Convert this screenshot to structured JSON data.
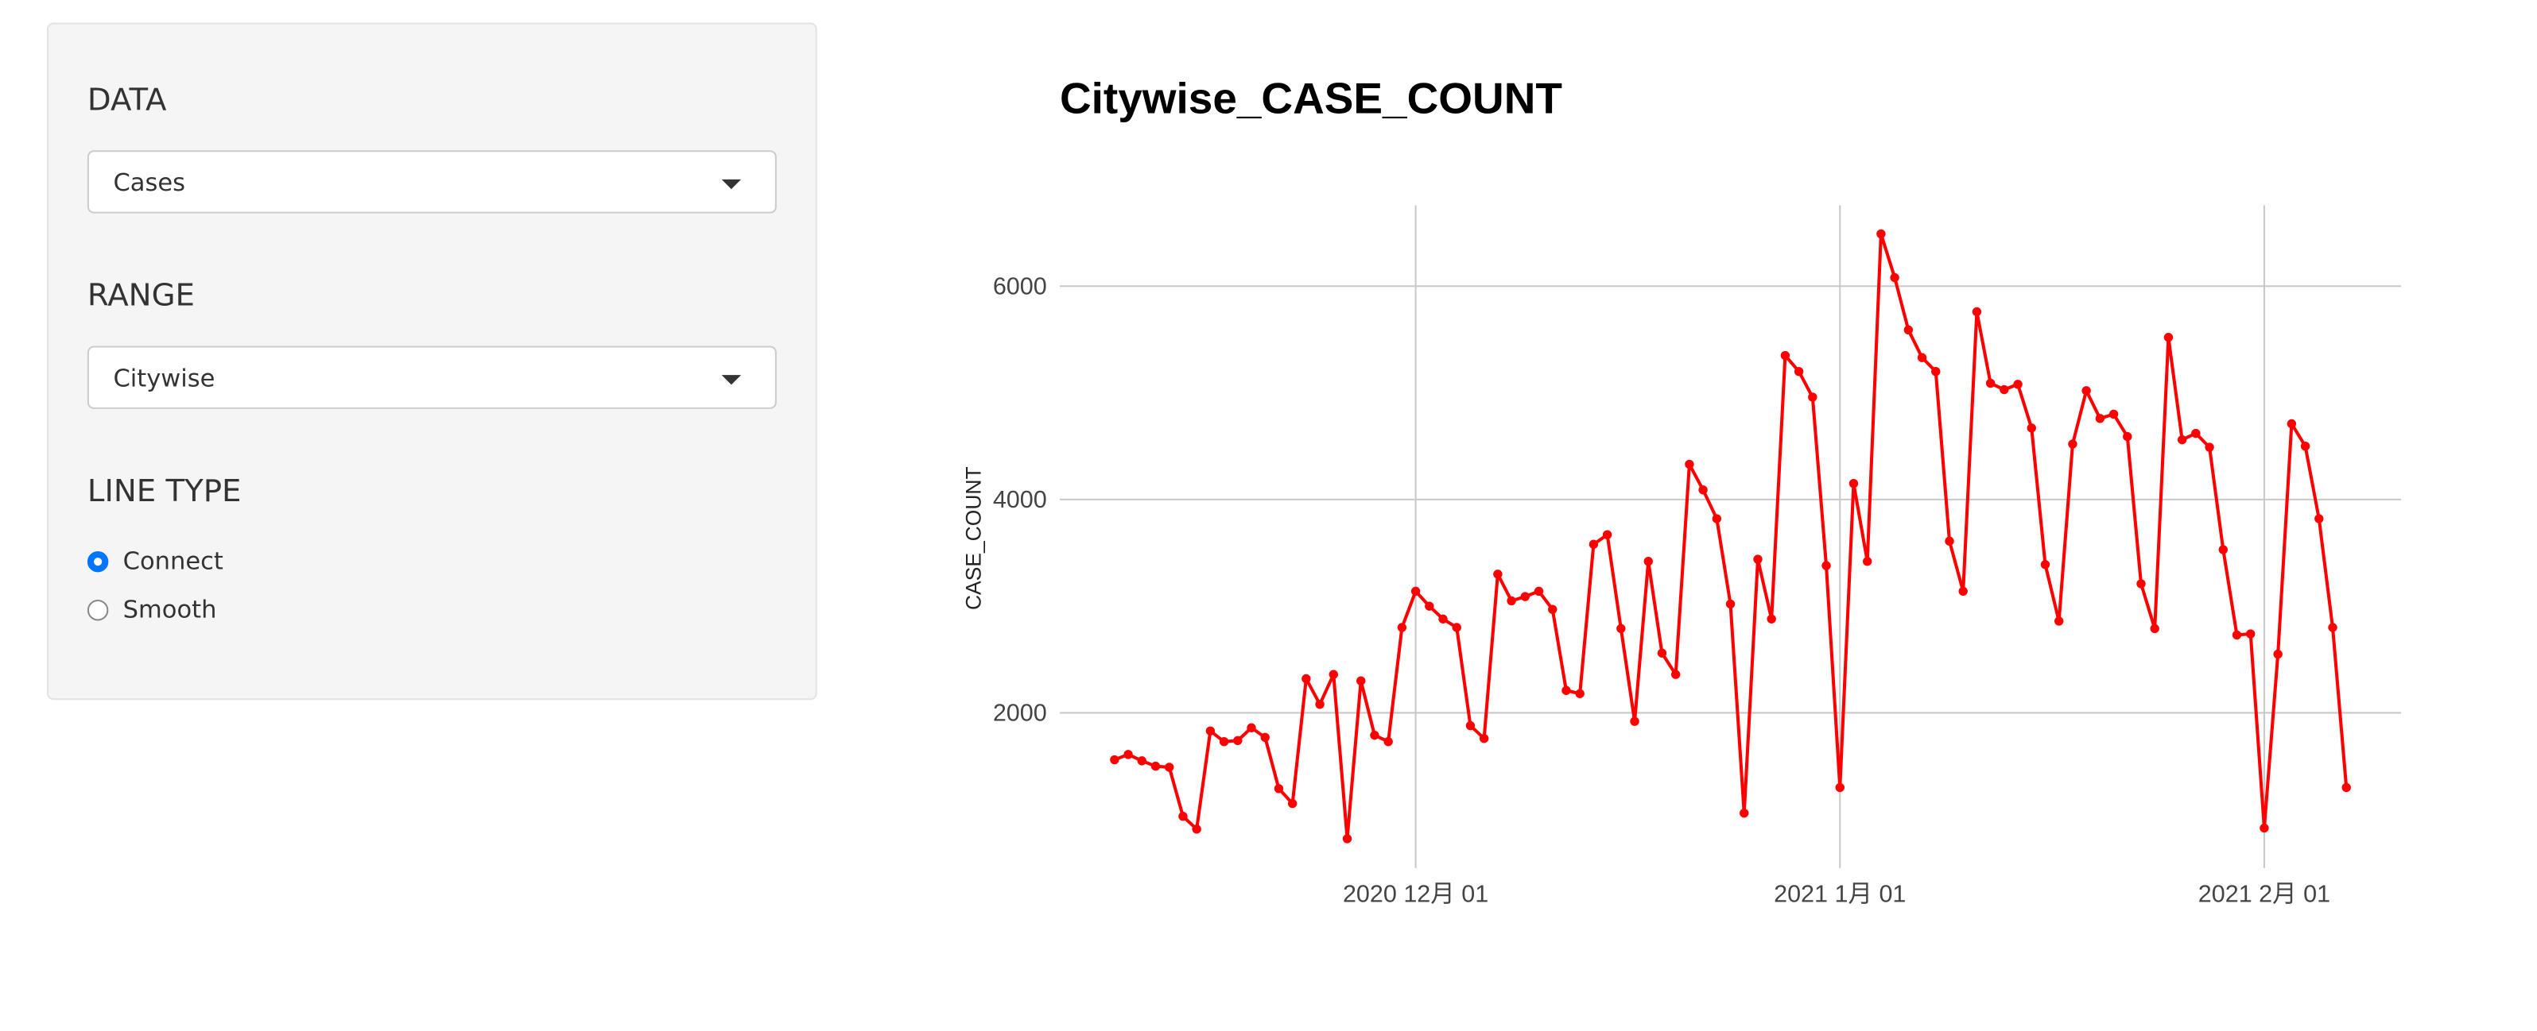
{
  "sidebar": {
    "data_label": "DATA",
    "data_value": "Cases",
    "range_label": "RANGE",
    "range_value": "Citywise",
    "line_type_label": "LINE TYPE",
    "options": [
      "Connect",
      "Smooth"
    ],
    "selected": 0
  },
  "chart_data": {
    "type": "line",
    "title": "Citywise_CASE_COUNT",
    "y_label": "CASE_COUNT",
    "x": [
      "2020-11-09",
      "2020-11-10",
      "2020-11-11",
      "2020-11-12",
      "2020-11-13",
      "2020-11-14",
      "2020-11-15",
      "2020-11-16",
      "2020-11-17",
      "2020-11-18",
      "2020-11-19",
      "2020-11-20",
      "2020-11-21",
      "2020-11-22",
      "2020-11-23",
      "2020-11-24",
      "2020-11-25",
      "2020-11-26",
      "2020-11-27",
      "2020-11-28",
      "2020-11-29",
      "2020-11-30",
      "2020-12-01",
      "2020-12-02",
      "2020-12-03",
      "2020-12-04",
      "2020-12-05",
      "2020-12-06",
      "2020-12-07",
      "2020-12-08",
      "2020-12-09",
      "2020-12-10",
      "2020-12-11",
      "2020-12-12",
      "2020-12-13",
      "2020-12-14",
      "2020-12-15",
      "2020-12-16",
      "2020-12-17",
      "2020-12-18",
      "2020-12-19",
      "2020-12-20",
      "2020-12-21",
      "2020-12-22",
      "2020-12-23",
      "2020-12-24",
      "2020-12-25",
      "2020-12-26",
      "2020-12-27",
      "2020-12-28",
      "2020-12-29",
      "2020-12-30",
      "2020-12-31",
      "2021-01-01",
      "2021-01-02",
      "2021-01-03",
      "2021-01-04",
      "2021-01-05",
      "2021-01-06",
      "2021-01-07",
      "2021-01-08",
      "2021-01-09",
      "2021-01-10",
      "2021-01-11",
      "2021-01-12",
      "2021-01-13",
      "2021-01-14",
      "2021-01-15",
      "2021-01-16",
      "2021-01-17",
      "2021-01-18",
      "2021-01-19",
      "2021-01-20",
      "2021-01-21",
      "2021-01-22",
      "2021-01-23",
      "2021-01-24",
      "2021-01-25",
      "2021-01-26",
      "2021-01-27",
      "2021-01-28",
      "2021-01-29",
      "2021-01-30",
      "2021-01-31",
      "2021-02-01",
      "2021-02-02",
      "2021-02-03",
      "2021-02-04",
      "2021-02-05",
      "2021-02-06",
      "2021-02-07"
    ],
    "series": [
      {
        "color": "#ff0000",
        "values": [
          1560,
          1610,
          1550,
          1500,
          1490,
          1030,
          910,
          1830,
          1730,
          1740,
          1860,
          1770,
          1290,
          1150,
          2320,
          2080,
          2360,
          820,
          2300,
          1790,
          1730,
          2800,
          3140,
          3000,
          2880,
          2800,
          1880,
          1760,
          3300,
          3050,
          3090,
          3140,
          2970,
          2210,
          2180,
          3580,
          3670,
          2790,
          1920,
          3420,
          2560,
          2360,
          4330,
          4090,
          3820,
          3020,
          1060,
          3440,
          2880,
          5350,
          5200,
          4960,
          3380,
          1300,
          4150,
          3420,
          6490,
          6080,
          5590,
          5330,
          5200,
          3610,
          3140,
          5760,
          5090,
          5030,
          5080,
          4670,
          3390,
          2860,
          4520,
          5020,
          4760,
          4800,
          4590,
          3210,
          2790,
          5520,
          4560,
          4620,
          4490,
          3530,
          2730,
          2740,
          920,
          2550,
          4710,
          4500,
          3820,
          2800,
          1300
        ]
      }
    ],
    "xlim": [
      "2020-11-05",
      "2021-02-11"
    ],
    "xticks": [
      {
        "value": "2020-12-01",
        "label": "2020 12月 01"
      },
      {
        "value": "2021-01-01",
        "label": "2021 1月 01"
      },
      {
        "value": "2021-02-01",
        "label": "2021 2月 01"
      }
    ],
    "ylim": [
      545,
      6758
    ],
    "yticks": [
      2000,
      4000,
      6000
    ],
    "grid": true
  }
}
